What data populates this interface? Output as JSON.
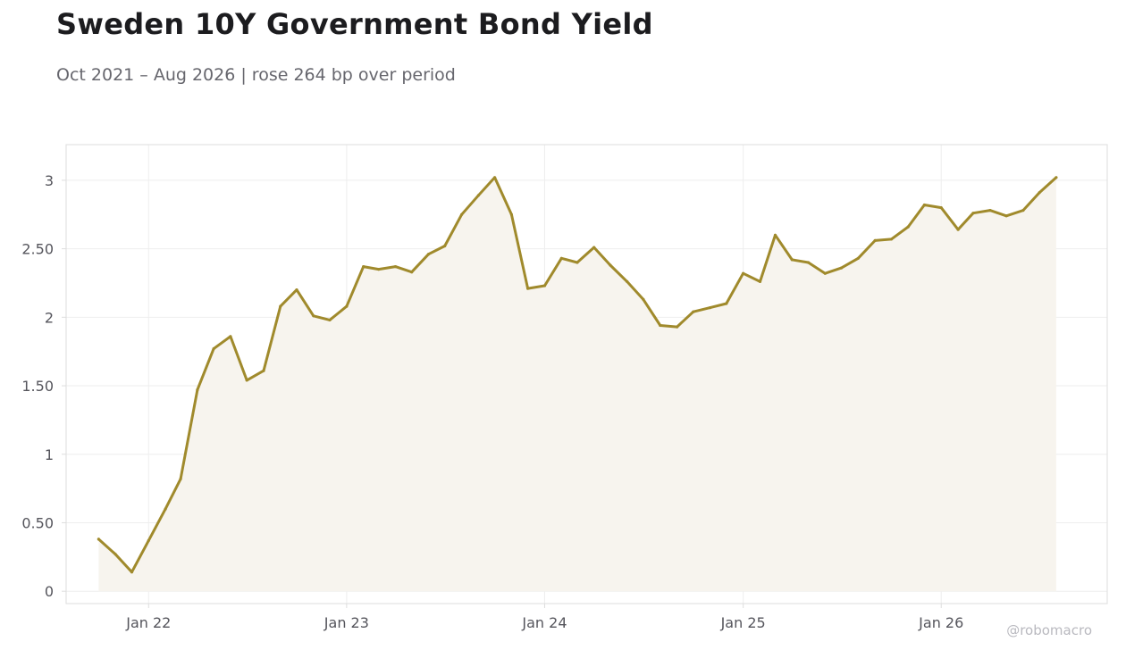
{
  "header": {
    "title": "Sweden 10Y Government Bond Yield",
    "subtitle": "Oct 2021 – Aug 2026 | rose 264 bp over period"
  },
  "watermark": "@robomacro",
  "colors": {
    "line": "#a08a2c",
    "area": "#f7f4ee",
    "grid": "#eeeeee",
    "frame": "#dddddd",
    "tick_text": "#55555c"
  },
  "chart_data": {
    "type": "area",
    "title": "Sweden 10Y Government Bond Yield",
    "subtitle": "Oct 2021 – Aug 2026 | rose 264 bp over period",
    "xlabel": "",
    "ylabel": "",
    "ylim": [
      -0.09,
      3.26
    ],
    "xlim": [
      "2021-08-02",
      "2026-11-03"
    ],
    "grid": true,
    "legend": "none",
    "y_ticks": [
      {
        "value": 0,
        "label": "0"
      },
      {
        "value": 0.5,
        "label": "0.50"
      },
      {
        "value": 1,
        "label": "1"
      },
      {
        "value": 1.5,
        "label": "1.50"
      },
      {
        "value": 2,
        "label": "2"
      },
      {
        "value": 2.5,
        "label": "2.50"
      },
      {
        "value": 3,
        "label": "3"
      }
    ],
    "x_ticks": [
      {
        "date": "2022-01-01",
        "label": "Jan 22"
      },
      {
        "date": "2023-01-01",
        "label": "Jan 23"
      },
      {
        "date": "2024-01-01",
        "label": "Jan 24"
      },
      {
        "date": "2025-01-01",
        "label": "Jan 25"
      },
      {
        "date": "2026-01-01",
        "label": "Jan 26"
      }
    ],
    "series": [
      {
        "x": [
          "2021-10-01",
          "2021-11-01",
          "2021-12-01",
          "2022-01-01",
          "2022-02-01",
          "2022-03-01",
          "2022-04-01",
          "2022-05-01",
          "2022-06-01",
          "2022-07-01",
          "2022-08-01",
          "2022-09-01",
          "2022-10-01",
          "2022-11-01",
          "2022-12-01",
          "2023-01-01",
          "2023-02-01",
          "2023-03-01",
          "2023-04-01",
          "2023-05-01",
          "2023-06-01",
          "2023-07-01",
          "2023-08-01",
          "2023-09-01",
          "2023-10-01",
          "2023-11-01",
          "2023-12-01",
          "2024-01-01",
          "2024-02-01",
          "2024-03-01",
          "2024-04-01",
          "2024-05-01",
          "2024-06-01",
          "2024-07-01",
          "2024-08-01",
          "2024-09-01",
          "2024-10-01",
          "2024-11-01",
          "2024-12-01",
          "2025-01-01",
          "2025-02-01",
          "2025-03-01",
          "2025-04-01",
          "2025-05-01",
          "2025-06-01",
          "2025-07-01",
          "2025-08-01",
          "2025-09-01",
          "2025-10-01",
          "2025-11-01",
          "2025-12-01",
          "2026-01-01",
          "2026-02-01",
          "2026-03-01",
          "2026-04-01",
          "2026-05-01",
          "2026-06-01",
          "2026-07-01",
          "2026-08-01"
        ],
        "values": [
          0.38,
          0.27,
          0.14,
          0.37,
          0.6,
          0.82,
          1.47,
          1.77,
          1.86,
          1.54,
          1.61,
          2.08,
          2.2,
          2.01,
          1.98,
          2.08,
          2.37,
          2.35,
          2.37,
          2.33,
          2.46,
          2.52,
          2.75,
          2.89,
          3.02,
          2.75,
          2.21,
          2.23,
          2.43,
          2.4,
          2.51,
          2.38,
          2.26,
          2.13,
          1.94,
          1.93,
          2.04,
          2.07,
          2.1,
          2.32,
          2.26,
          2.6,
          2.42,
          2.4,
          2.32,
          2.36,
          2.43,
          2.56,
          2.57,
          2.66,
          2.82,
          2.8,
          2.64,
          2.76,
          2.78,
          2.74,
          2.78,
          2.91,
          3.02
        ]
      }
    ]
  }
}
